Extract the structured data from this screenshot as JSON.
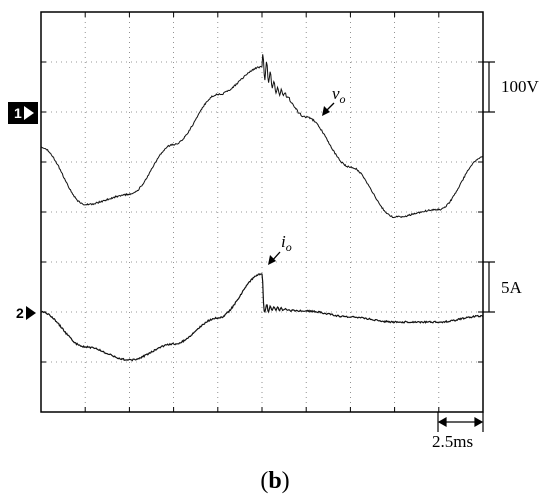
{
  "chart_data": {
    "type": "line",
    "title": "",
    "grid": true,
    "x": {
      "divisions": 10,
      "per_division": "2.5ms",
      "range_ms": [
        0,
        25
      ]
    },
    "channels": [
      {
        "marker": "1",
        "name": "v",
        "subscript": "o",
        "scale_label": "100V",
        "volts_per_division": 100,
        "sample_x_ms": [
          0,
          2.5,
          5,
          7.5,
          10,
          12.5,
          13.5,
          15,
          17.5,
          20,
          22.5,
          25
        ],
        "values": [
          -70,
          -185,
          -165,
          -65,
          35,
          90,
          40,
          -10,
          -110,
          -210,
          -195,
          -90
        ],
        "transient_at_ms": 12.5
      },
      {
        "marker": "2",
        "name": "i",
        "subscript": "o",
        "scale_label": "5A",
        "amps_per_division": 5,
        "sample_x_ms": [
          0,
          2.5,
          5,
          7.5,
          10,
          12.5,
          12.6,
          15,
          17.5,
          20,
          22.5,
          25
        ],
        "values": [
          0,
          -3.5,
          -4.8,
          -3.2,
          -0.6,
          3.8,
          0.4,
          0.1,
          -0.5,
          -1.0,
          -1.0,
          -0.4
        ],
        "transient_at_ms": 12.5
      }
    ]
  },
  "caption": {
    "open": "(",
    "letter": "b",
    "close": ")"
  }
}
